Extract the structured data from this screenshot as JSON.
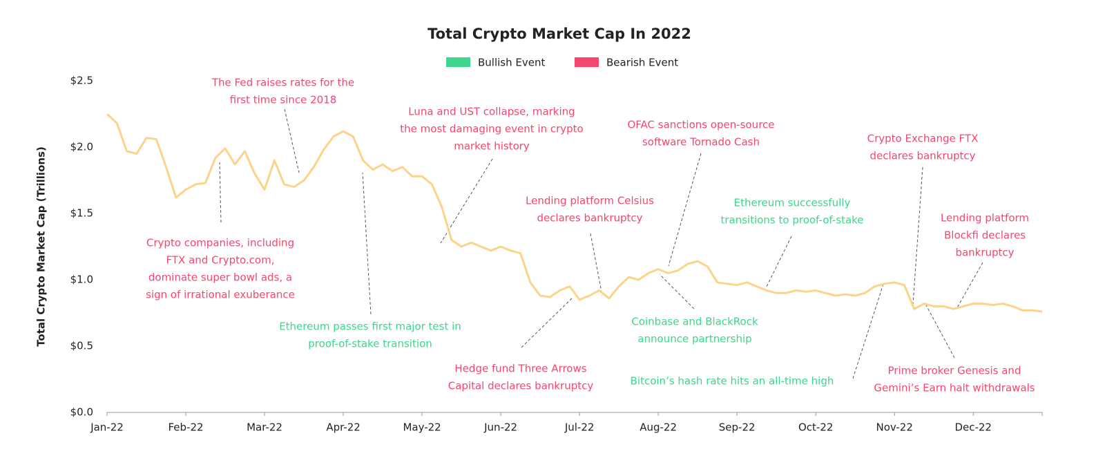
{
  "chart_data": {
    "type": "line",
    "title": "Total Crypto Market Cap In 2022",
    "y_label": "Total Crypto Market Cap (Trillions)",
    "legend": [
      {
        "name": "Bullish Event",
        "color": "#3dd68c"
      },
      {
        "name": "Bearish Event",
        "color": "#f5466e"
      }
    ],
    "color": "#fcd38a",
    "categories": [
      "Jan-22",
      null,
      null,
      null,
      null,
      null,
      null,
      null,
      "Feb-22",
      null,
      null,
      null,
      null,
      null,
      null,
      null,
      "Mar-22",
      null,
      null,
      null,
      null,
      null,
      null,
      null,
      "Apr-22",
      null,
      null,
      null,
      null,
      null,
      null,
      null,
      "May-22",
      null,
      null,
      null,
      null,
      null,
      null,
      null,
      "Jun-22",
      null,
      null,
      null,
      null,
      null,
      null,
      null,
      "Jul-22",
      null,
      null,
      null,
      null,
      null,
      null,
      null,
      "Aug-22",
      null,
      null,
      null,
      null,
      null,
      null,
      null,
      "Sep-22",
      null,
      null,
      null,
      null,
      null,
      null,
      null,
      "Oct-22",
      null,
      null,
      null,
      null,
      null,
      null,
      null,
      "Nov-22",
      null,
      null,
      null,
      null,
      null,
      null,
      null,
      "Dec-22",
      null,
      null,
      null,
      null,
      null,
      null,
      null
    ],
    "values": [
      2.25,
      2.18,
      1.97,
      1.95,
      2.07,
      2.06,
      1.85,
      1.62,
      1.68,
      1.72,
      1.73,
      1.92,
      1.99,
      1.87,
      1.97,
      1.8,
      1.68,
      1.9,
      1.72,
      1.7,
      1.75,
      1.85,
      1.98,
      2.08,
      2.12,
      2.08,
      1.9,
      1.83,
      1.87,
      1.82,
      1.85,
      1.78,
      1.78,
      1.72,
      1.55,
      1.3,
      1.25,
      1.28,
      1.25,
      1.22,
      1.25,
      1.22,
      1.2,
      0.98,
      0.88,
      0.87,
      0.92,
      0.95,
      0.85,
      0.88,
      0.92,
      0.86,
      0.95,
      1.02,
      1.0,
      1.05,
      1.08,
      1.05,
      1.07,
      1.12,
      1.14,
      1.1,
      0.98,
      0.97,
      0.96,
      0.98,
      0.95,
      0.92,
      0.9,
      0.9,
      0.92,
      0.91,
      0.92,
      0.9,
      0.88,
      0.89,
      0.88,
      0.9,
      0.95,
      0.97,
      0.98,
      0.96,
      0.78,
      0.82,
      0.8,
      0.8,
      0.78,
      0.8,
      0.82,
      0.82,
      0.81,
      0.82,
      0.8,
      0.77,
      0.77,
      0.76
    ],
    "ylim": [
      0,
      2.5
    ],
    "yticks": [
      {
        "value": 0,
        "label": "$0.0"
      },
      {
        "value": 0.5,
        "label": "$0.5"
      },
      {
        "value": 1,
        "label": "$1.0"
      },
      {
        "value": 1.5,
        "label": "$1.5"
      },
      {
        "value": 2,
        "label": "$2.0"
      },
      {
        "value": 2.5,
        "label": "$2.5"
      }
    ],
    "annotations": [
      {
        "lines": [
          "The Fed raises rates for the",
          "first time since 2018"
        ],
        "color": "#f5466e"
      },
      {
        "lines": [
          "Luna and UST collapse, marking",
          "the most damaging event in crypto",
          "market history"
        ],
        "color": "#f5466e"
      },
      {
        "lines": [
          "OFAC sanctions open-source",
          "software Tornado Cash"
        ],
        "color": "#f5466e"
      },
      {
        "lines": [
          "Crypto Exchange FTX",
          "declares bankruptcy"
        ],
        "color": "#f5466e"
      },
      {
        "lines": [
          "Lending platform Celsius",
          "declares bankruptcy"
        ],
        "color": "#f5466e"
      },
      {
        "lines": [
          "Ethereum successfully",
          "transitions to proof-of-stake"
        ],
        "color": "#3dd68c"
      },
      {
        "lines": [
          "Lending platform",
          "Blockfi declares",
          "bankruptcy"
        ],
        "color": "#f5466e"
      },
      {
        "lines": [
          "Crypto companies, including",
          "FTX and Crypto.com,",
          "dominate super bowl ads, a",
          "sign of irrational exuberance"
        ],
        "color": "#f5466e"
      },
      {
        "lines": [
          "Ethereum passes first major test in",
          "proof-of-stake transition"
        ],
        "color": "#3dd68c"
      },
      {
        "lines": [
          "Coinbase and BlackRock",
          "announce partnership"
        ],
        "color": "#3dd68c"
      },
      {
        "lines": [
          "Hedge fund Three Arrows",
          "Capital declares bankruptcy"
        ],
        "color": "#f5466e"
      },
      {
        "lines": [
          "Bitcoin’s hash rate hits an all-time high"
        ],
        "color": "#3dd68c"
      },
      {
        "lines": [
          "Prime broker Genesis and",
          "Gemini’s Earn halt withdrawals"
        ],
        "color": "#f5466e"
      }
    ]
  }
}
